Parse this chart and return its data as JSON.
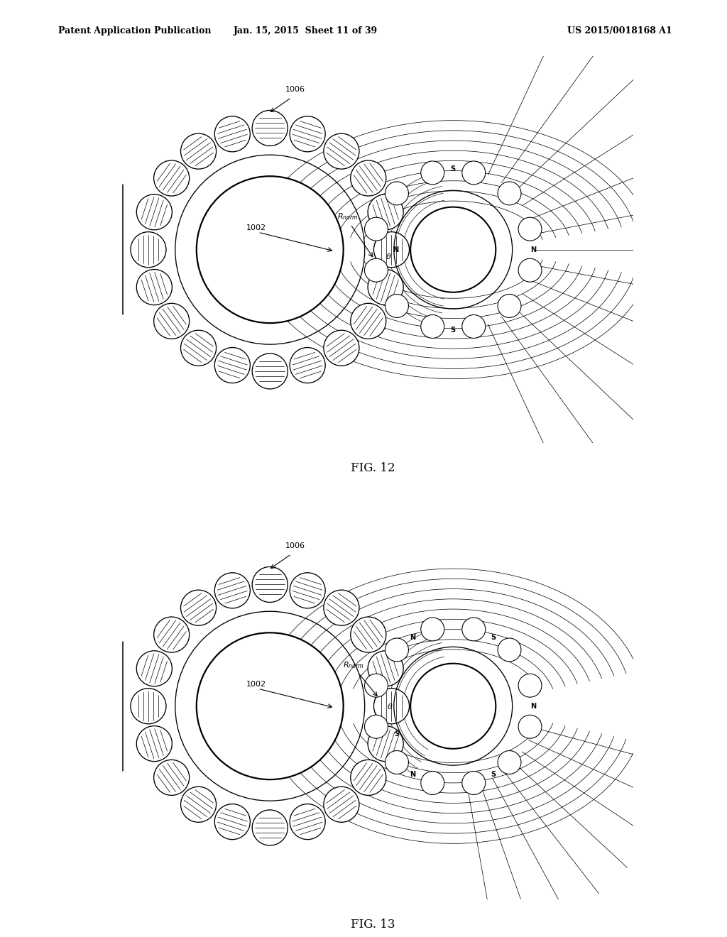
{
  "background_color": "#ffffff",
  "header_text": "Patent Application Publication",
  "header_date": "Jan. 15, 2015  Sheet 11 of 39",
  "header_patent": "US 2015/0018168 A1",
  "fig12_label": "FIG. 12",
  "fig13_label": "FIG. 13",
  "line_color": "#000000",
  "lw": 1.2
}
